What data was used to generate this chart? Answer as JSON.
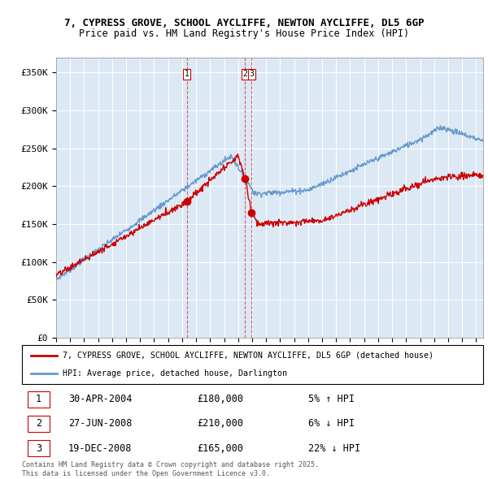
{
  "title_line1": "7, CYPRESS GROVE, SCHOOL AYCLIFFE, NEWTON AYCLIFFE, DL5 6GP",
  "title_line2": "Price paid vs. HM Land Registry's House Price Index (HPI)",
  "ylabel_ticks": [
    "£0",
    "£50K",
    "£100K",
    "£150K",
    "£200K",
    "£250K",
    "£300K",
    "£350K"
  ],
  "ytick_values": [
    0,
    50000,
    100000,
    150000,
    200000,
    250000,
    300000,
    350000
  ],
  "ylim": [
    0,
    370000
  ],
  "xlim_start": 1995.0,
  "xlim_end": 2025.5,
  "legend_line1": "7, CYPRESS GROVE, SCHOOL AYCLIFFE, NEWTON AYCLIFFE, DL5 6GP (detached house)",
  "legend_line2": "HPI: Average price, detached house, Darlington",
  "line_color_red": "#cc0000",
  "line_color_blue": "#6699cc",
  "chart_bg": "#dce9f5",
  "transaction_color": "#cc0000",
  "vline_color": "#cc0000",
  "transactions": [
    {
      "num": 1,
      "date": "30-APR-2004",
      "price": 180000,
      "pct": "5%",
      "dir": "↑",
      "x_year": 2004.33
    },
    {
      "num": 2,
      "date": "27-JUN-2008",
      "price": 210000,
      "pct": "6%",
      "dir": "↓",
      "x_year": 2008.5
    },
    {
      "num": 3,
      "date": "19-DEC-2008",
      "price": 165000,
      "pct": "22%",
      "dir": "↓",
      "x_year": 2008.96
    }
  ],
  "footer_line1": "Contains HM Land Registry data © Crown copyright and database right 2025.",
  "footer_line2": "This data is licensed under the Open Government Licence v3.0.",
  "background_color": "#ffffff",
  "grid_color": "#ffffff"
}
